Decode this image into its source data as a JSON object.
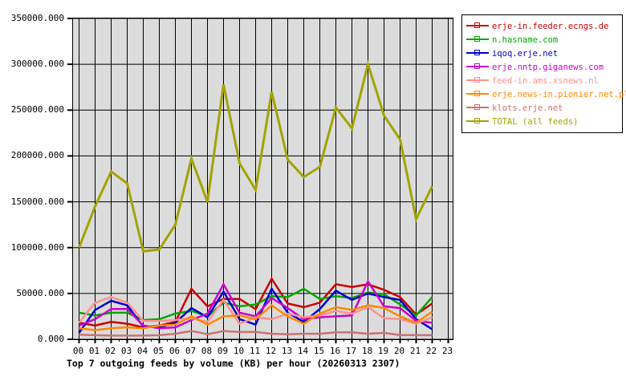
{
  "title": "Top 7 outgoing feeds by volume (KB) per hour (20260313 2307)",
  "chart_data": {
    "type": "line",
    "title": "Top 7 outgoing feeds by volume (KB) per hour (20260313 2307)",
    "x_labels": [
      "00",
      "01",
      "02",
      "03",
      "04",
      "05",
      "06",
      "07",
      "08",
      "09",
      "10",
      "11",
      "12",
      "13",
      "14",
      "15",
      "16",
      "17",
      "18",
      "19",
      "20",
      "21",
      "22",
      "23"
    ],
    "ylim": [
      0,
      350000
    ],
    "ytick_step": 50000,
    "ytick_labels": [
      "0.000",
      "50000.000",
      "100000.000",
      "150000.000",
      "200000.000",
      "250000.000",
      "300000.000",
      "350000.000"
    ],
    "grid": true,
    "grid_color": "#000000",
    "plot_bg": "#DCDCDC",
    "legend_position": "right",
    "series": [
      {
        "name": "erje-in.feeder.ecngs.de",
        "color": "#CC0000",
        "width": 2.5,
        "values": [
          18000,
          15000,
          19000,
          17000,
          13000,
          15000,
          19000,
          55000,
          36000,
          44000,
          44000,
          33000,
          66000,
          39000,
          35000,
          40000,
          60000,
          57000,
          60000,
          54000,
          46000,
          27000,
          39000
        ]
      },
      {
        "name": "n.hasname.com",
        "color": "#00A800",
        "width": 2.5,
        "values": [
          29000,
          26000,
          29000,
          29000,
          21000,
          22000,
          28000,
          31000,
          25000,
          40000,
          36000,
          38000,
          47000,
          46000,
          55000,
          44000,
          47000,
          45000,
          51000,
          49000,
          38000,
          26000,
          46000
        ]
      },
      {
        "name": "iqoq.erje.net",
        "color": "#0000CC",
        "width": 2.5,
        "values": [
          7000,
          32000,
          42000,
          37000,
          14000,
          13000,
          18000,
          34000,
          24000,
          52000,
          22000,
          16000,
          55000,
          29000,
          19000,
          33000,
          53000,
          43000,
          50000,
          46000,
          43000,
          22000,
          11000
        ]
      },
      {
        "name": "erje.nntp.giganews.com",
        "color": "#CC00CC",
        "width": 2.5,
        "values": [
          15000,
          22000,
          33000,
          33000,
          15000,
          12000,
          13000,
          21000,
          28000,
          60000,
          29000,
          25000,
          45000,
          34000,
          22000,
          24000,
          25000,
          26000,
          63000,
          36000,
          34000,
          20000,
          18000
        ]
      },
      {
        "name": "feed-in.ams.xsnews.nl",
        "color": "#FF9090",
        "width": 2.5,
        "values": [
          18000,
          40000,
          46000,
          40000,
          20000,
          20000,
          21000,
          23000,
          19000,
          43000,
          17000,
          24000,
          22000,
          28000,
          24000,
          26000,
          31000,
          28000,
          35000,
          23000,
          22000,
          17000,
          24000
        ]
      },
      {
        "name": "erje.news-in.pionier.net.pl",
        "color": "#FF8800",
        "width": 2.5,
        "values": [
          12000,
          10000,
          12000,
          13000,
          12000,
          15000,
          16000,
          25000,
          16000,
          25000,
          26000,
          22000,
          37000,
          25000,
          17000,
          28000,
          35000,
          32000,
          37000,
          34000,
          25000,
          18000,
          30000
        ]
      },
      {
        "name": "klots.erje.net",
        "color": "#CC7272",
        "width": 2.5,
        "values": [
          5000,
          4500,
          4000,
          4000,
          4000,
          4500,
          6000,
          9000,
          5500,
          9000,
          8000,
          8000,
          6000,
          5500,
          6000,
          6000,
          7500,
          7500,
          6000,
          7000,
          4600,
          4500,
          4500
        ]
      },
      {
        "name": "TOTAL (all feeds)",
        "color": "#A3A300",
        "width": 3,
        "values": [
          100000,
          145000,
          183000,
          170000,
          96000,
          98000,
          125000,
          197000,
          150000,
          278000,
          192000,
          163000,
          270000,
          196000,
          177000,
          188000,
          253000,
          230000,
          300000,
          244000,
          218000,
          131000,
          167000
        ]
      }
    ]
  }
}
